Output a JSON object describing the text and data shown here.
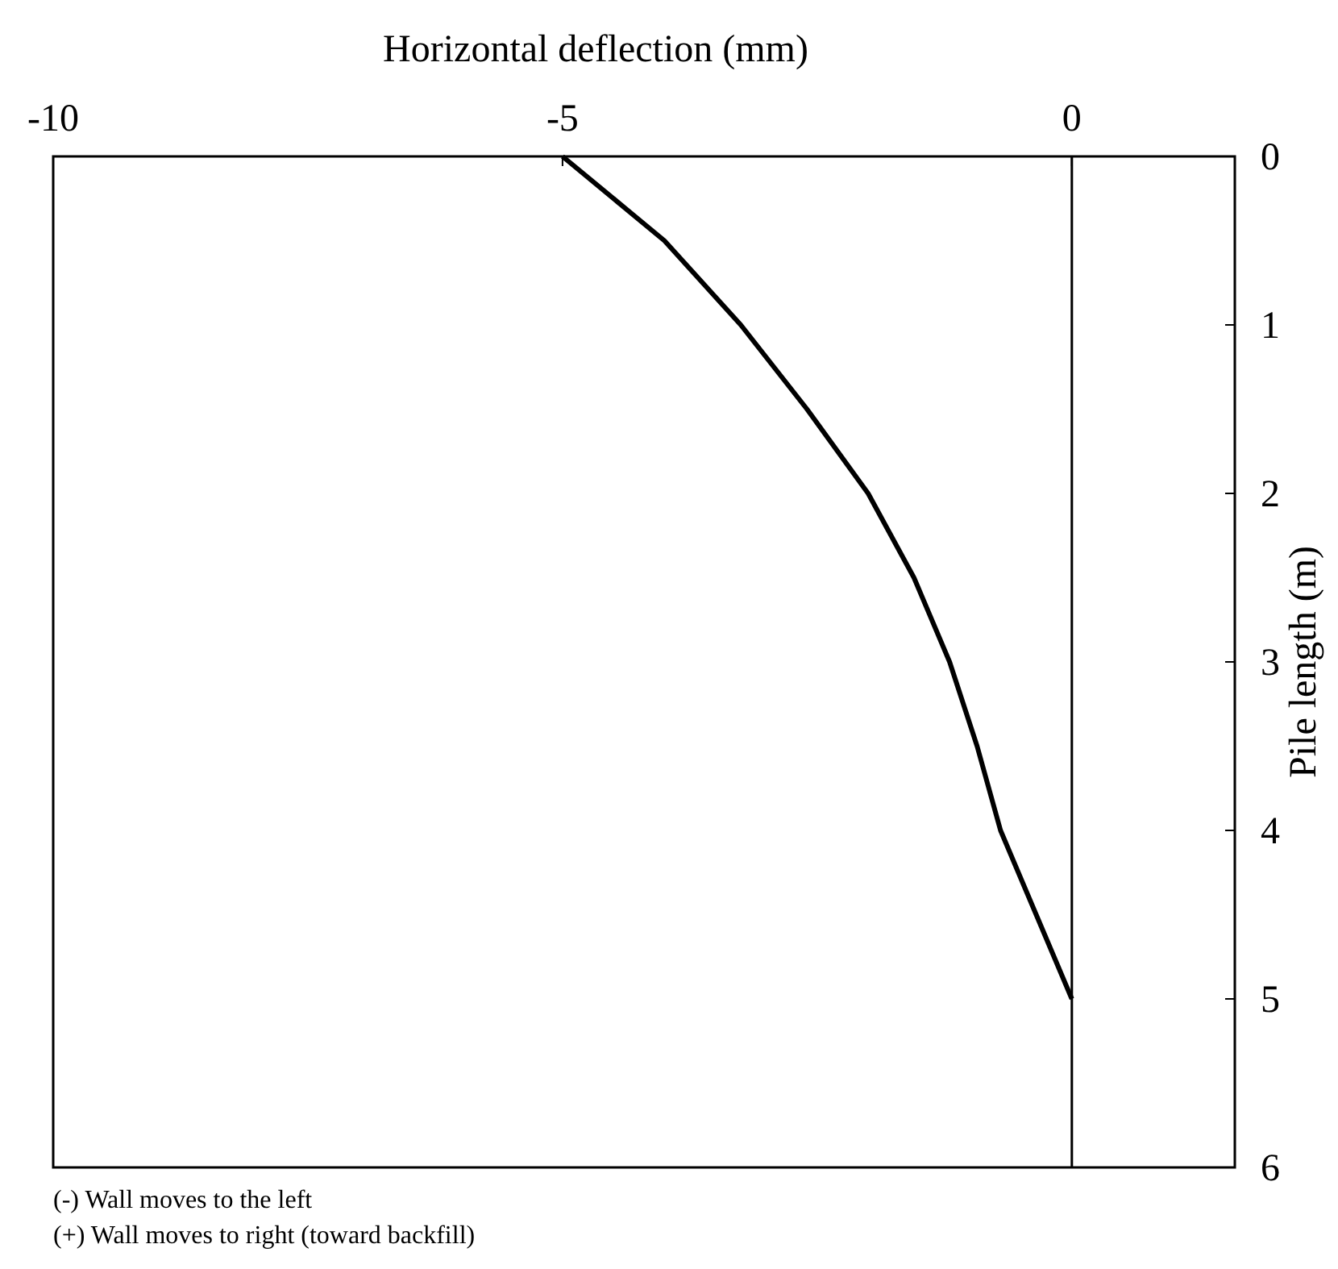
{
  "chart_data": {
    "type": "line",
    "xlabel": "Horizontal deflection (mm)",
    "ylabel": "Pile length (m)",
    "xlim": [
      -10,
      1.6
    ],
    "xticks": [
      -10,
      -5,
      0
    ],
    "ylim": [
      6,
      0
    ],
    "yticks": [
      0,
      1,
      2,
      3,
      4,
      5,
      6
    ],
    "grid": false,
    "line_style": "solid",
    "series": [
      {
        "color": "#000000",
        "x": [
          -5,
          -4,
          -3.25,
          -2.6,
          -2,
          -1.55,
          -1.2,
          -0.93,
          -0.7,
          -0.35,
          0
        ],
        "values": [
          0,
          0.5,
          1,
          1.5,
          2,
          2.5,
          3,
          3.5,
          4,
          4.5,
          5
        ]
      }
    ],
    "ref_lines": [
      {
        "axis": "x",
        "value": 0,
        "color": "#000000"
      }
    ],
    "annotations": [
      "(-)  Wall moves to the left",
      "(+) Wall moves to  right (toward backfill)"
    ]
  }
}
